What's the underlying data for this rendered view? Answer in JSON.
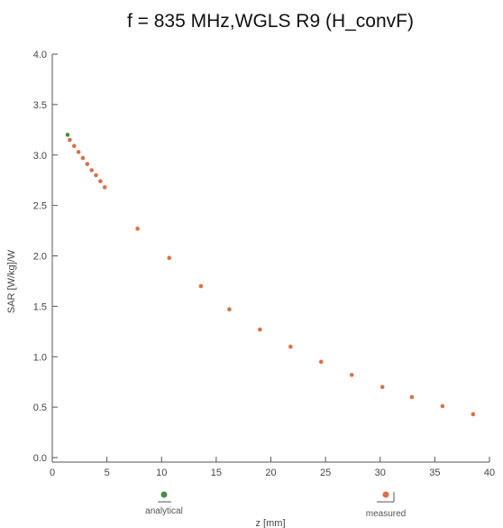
{
  "chart_data": {
    "type": "scatter",
    "title": "f = 835 MHz,WGLS R9 (H_convF)",
    "xlabel": "z [mm]",
    "ylabel": "SAR [W/kg]/W",
    "xlim": [
      0,
      40
    ],
    "ylim": [
      0,
      4.0
    ],
    "xticks": [
      "0",
      "5",
      "10",
      "15",
      "20",
      "25",
      "30",
      "35",
      "40"
    ],
    "yticks": [
      "0.0",
      "0.5",
      "1.0",
      "1.5",
      "2.0",
      "2.5",
      "3.0",
      "3.5",
      "4.0"
    ],
    "grid": false,
    "legend_position": "bottom",
    "series": [
      {
        "name": "analytical",
        "color": "#4a8a4a",
        "x": [
          1.4
        ],
        "y": [
          3.2
        ]
      },
      {
        "name": "measured",
        "color": "#d9704a",
        "x": [
          1.6,
          2.0,
          2.4,
          2.8,
          3.2,
          3.6,
          4.0,
          4.4,
          4.8,
          7.8,
          10.7,
          13.6,
          16.2,
          19.0,
          21.8,
          24.6,
          27.4,
          30.2,
          32.9,
          35.7,
          38.5
        ],
        "y": [
          3.15,
          3.09,
          3.03,
          2.97,
          2.91,
          2.85,
          2.8,
          2.74,
          2.68,
          2.27,
          1.98,
          1.7,
          1.47,
          1.27,
          1.1,
          0.95,
          0.82,
          0.7,
          0.6,
          0.51,
          0.43
        ]
      }
    ]
  }
}
